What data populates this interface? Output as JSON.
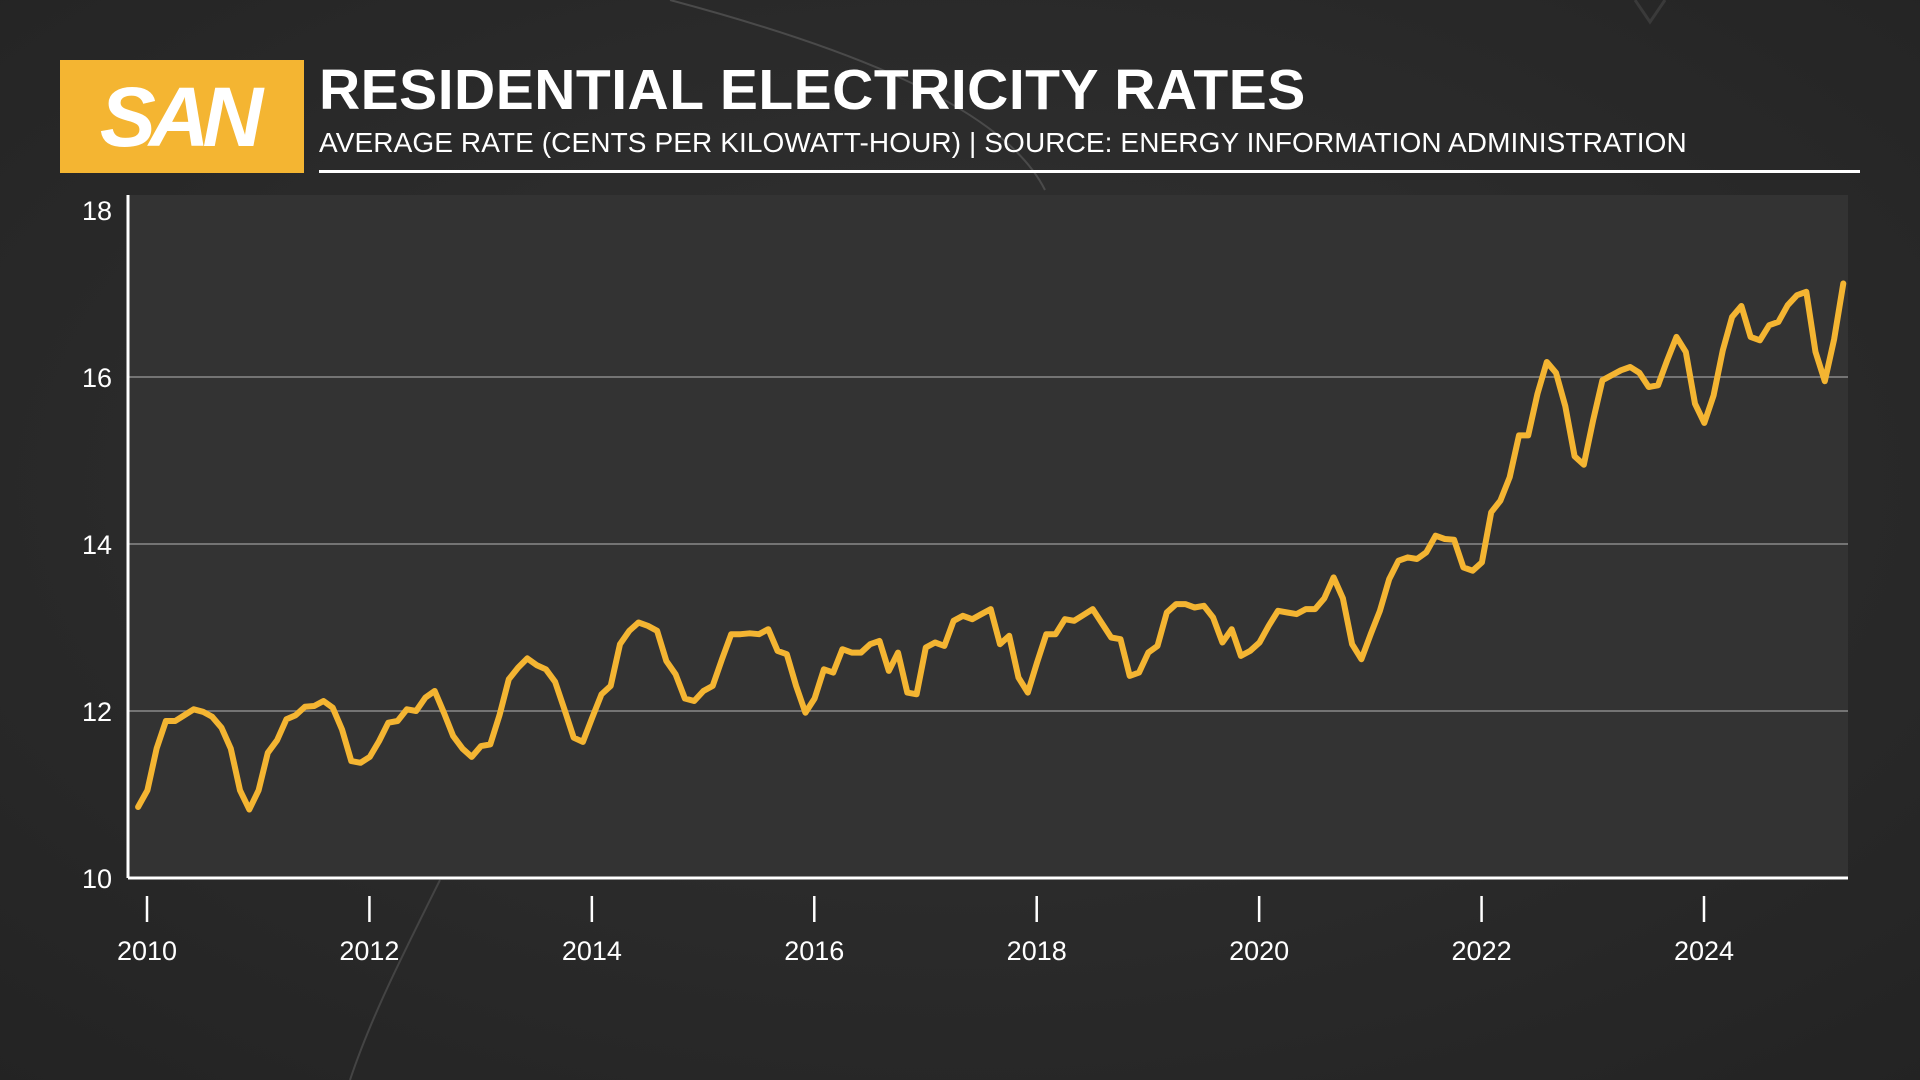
{
  "header": {
    "logo_text": "SAN",
    "title": "RESIDENTIAL ELECTRICITY RATES",
    "subtitle": "AVERAGE RATE (CENTS PER KILOWATT-HOUR) | SOURCE: ENERGY INFORMATION ADMINISTRATION"
  },
  "colors": {
    "background": "#2b2b2b",
    "plot_area": "#333333",
    "accent": "#f4b532",
    "line": "#f4b532",
    "grid": "#8a8a8a",
    "text": "#ffffff"
  },
  "chart_data": {
    "type": "line",
    "title": "RESIDENTIAL ELECTRICITY RATES",
    "subtitle": "AVERAGE RATE (CENTS PER KILOWATT-HOUR) | SOURCE: ENERGY INFORMATION ADMINISTRATION",
    "xlabel": "",
    "ylabel": "",
    "xlim": [
      2010,
      2025.25
    ],
    "ylim": [
      10,
      18
    ],
    "yticks": [
      10,
      12,
      14,
      16,
      18
    ],
    "ytick_labels": [
      "10",
      "12",
      "14",
      "16",
      "18"
    ],
    "xticks": [
      2010,
      2012,
      2014,
      2016,
      2018,
      2020,
      2022,
      2024
    ],
    "xtick_labels": [
      "2010",
      "2012",
      "2014",
      "2016",
      "2018",
      "2020",
      "2022",
      "2024"
    ],
    "grid": true,
    "legend": "none",
    "series": [
      {
        "name": "Average residential rate (cents/kWh)",
        "start_year": 2009.92,
        "step_years": 0.08333,
        "values": [
          10.85,
          11.05,
          11.55,
          11.88,
          11.88,
          11.95,
          12.02,
          11.99,
          11.93,
          11.8,
          11.55,
          11.05,
          10.82,
          11.05,
          11.5,
          11.65,
          11.9,
          11.95,
          12.05,
          12.06,
          12.12,
          12.04,
          11.78,
          11.4,
          11.38,
          11.45,
          11.64,
          11.86,
          11.88,
          12.02,
          12.0,
          12.16,
          12.24,
          11.98,
          11.7,
          11.55,
          11.45,
          11.58,
          11.6,
          11.95,
          12.38,
          12.52,
          12.63,
          12.55,
          12.5,
          12.35,
          12.02,
          11.68,
          11.63,
          11.92,
          12.2,
          12.3,
          12.8,
          12.96,
          13.06,
          13.02,
          12.96,
          12.6,
          12.44,
          12.15,
          12.12,
          12.24,
          12.3,
          12.62,
          12.92,
          12.92,
          12.93,
          12.92,
          12.98,
          12.72,
          12.68,
          12.3,
          11.98,
          12.15,
          12.5,
          12.46,
          12.74,
          12.7,
          12.7,
          12.8,
          12.84,
          12.48,
          12.7,
          12.22,
          12.2,
          12.76,
          12.82,
          12.78,
          13.08,
          13.14,
          13.1,
          13.16,
          13.22,
          12.8,
          12.9,
          12.4,
          12.22,
          12.58,
          12.92,
          12.92,
          13.1,
          13.08,
          13.15,
          13.22,
          13.05,
          12.88,
          12.86,
          12.42,
          12.46,
          12.7,
          12.78,
          13.18,
          13.28,
          13.28,
          13.24,
          13.26,
          13.12,
          12.82,
          12.98,
          12.66,
          12.72,
          12.82,
          13.02,
          13.2,
          13.18,
          13.16,
          13.22,
          13.22,
          13.35,
          13.6,
          13.35,
          12.8,
          12.62,
          12.92,
          13.2,
          13.58,
          13.8,
          13.84,
          13.82,
          13.9,
          14.1,
          14.06,
          14.05,
          13.72,
          13.68,
          13.78,
          14.38,
          14.52,
          14.8,
          15.3,
          15.3,
          15.8,
          16.18,
          16.05,
          15.65,
          15.05,
          14.95,
          15.48,
          15.96,
          16.02,
          16.08,
          16.12,
          16.05,
          15.88,
          15.9,
          16.2,
          16.48,
          16.3,
          15.68,
          15.45,
          15.78,
          16.32,
          16.72,
          16.85,
          16.48,
          16.44,
          16.62,
          16.66,
          16.86,
          16.98,
          17.02,
          16.3,
          15.95,
          16.45,
          17.12
        ]
      }
    ]
  }
}
